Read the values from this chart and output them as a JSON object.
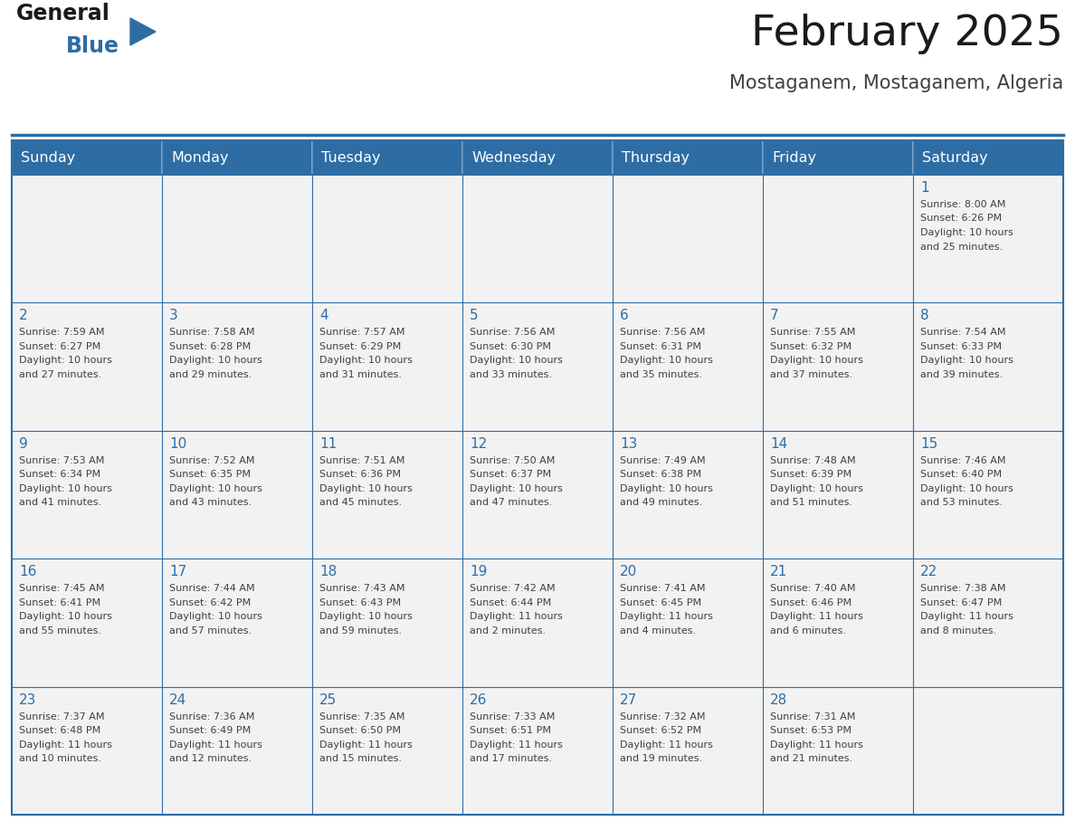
{
  "title": "February 2025",
  "subtitle": "Mostaganem, Mostaganem, Algeria",
  "header_bg_color": "#2E6DA4",
  "header_text_color": "#FFFFFF",
  "cell_bg_color": "#F2F2F2",
  "border_color": "#2E6DA4",
  "title_color": "#1a1a1a",
  "subtitle_color": "#404040",
  "day_number_color": "#2E6DA4",
  "cell_text_color": "#404040",
  "days_of_week": [
    "Sunday",
    "Monday",
    "Tuesday",
    "Wednesday",
    "Thursday",
    "Friday",
    "Saturday"
  ],
  "weeks": [
    [
      null,
      null,
      null,
      null,
      null,
      null,
      1
    ],
    [
      2,
      3,
      4,
      5,
      6,
      7,
      8
    ],
    [
      9,
      10,
      11,
      12,
      13,
      14,
      15
    ],
    [
      16,
      17,
      18,
      19,
      20,
      21,
      22
    ],
    [
      23,
      24,
      25,
      26,
      27,
      28,
      null
    ]
  ],
  "cell_data": {
    "1": {
      "sunrise": "8:00 AM",
      "sunset": "6:26 PM",
      "daylight_h": "10 hours",
      "daylight_m": "and 25 minutes."
    },
    "2": {
      "sunrise": "7:59 AM",
      "sunset": "6:27 PM",
      "daylight_h": "10 hours",
      "daylight_m": "and 27 minutes."
    },
    "3": {
      "sunrise": "7:58 AM",
      "sunset": "6:28 PM",
      "daylight_h": "10 hours",
      "daylight_m": "and 29 minutes."
    },
    "4": {
      "sunrise": "7:57 AM",
      "sunset": "6:29 PM",
      "daylight_h": "10 hours",
      "daylight_m": "and 31 minutes."
    },
    "5": {
      "sunrise": "7:56 AM",
      "sunset": "6:30 PM",
      "daylight_h": "10 hours",
      "daylight_m": "and 33 minutes."
    },
    "6": {
      "sunrise": "7:56 AM",
      "sunset": "6:31 PM",
      "daylight_h": "10 hours",
      "daylight_m": "and 35 minutes."
    },
    "7": {
      "sunrise": "7:55 AM",
      "sunset": "6:32 PM",
      "daylight_h": "10 hours",
      "daylight_m": "and 37 minutes."
    },
    "8": {
      "sunrise": "7:54 AM",
      "sunset": "6:33 PM",
      "daylight_h": "10 hours",
      "daylight_m": "and 39 minutes."
    },
    "9": {
      "sunrise": "7:53 AM",
      "sunset": "6:34 PM",
      "daylight_h": "10 hours",
      "daylight_m": "and 41 minutes."
    },
    "10": {
      "sunrise": "7:52 AM",
      "sunset": "6:35 PM",
      "daylight_h": "10 hours",
      "daylight_m": "and 43 minutes."
    },
    "11": {
      "sunrise": "7:51 AM",
      "sunset": "6:36 PM",
      "daylight_h": "10 hours",
      "daylight_m": "and 45 minutes."
    },
    "12": {
      "sunrise": "7:50 AM",
      "sunset": "6:37 PM",
      "daylight_h": "10 hours",
      "daylight_m": "and 47 minutes."
    },
    "13": {
      "sunrise": "7:49 AM",
      "sunset": "6:38 PM",
      "daylight_h": "10 hours",
      "daylight_m": "and 49 minutes."
    },
    "14": {
      "sunrise": "7:48 AM",
      "sunset": "6:39 PM",
      "daylight_h": "10 hours",
      "daylight_m": "and 51 minutes."
    },
    "15": {
      "sunrise": "7:46 AM",
      "sunset": "6:40 PM",
      "daylight_h": "10 hours",
      "daylight_m": "and 53 minutes."
    },
    "16": {
      "sunrise": "7:45 AM",
      "sunset": "6:41 PM",
      "daylight_h": "10 hours",
      "daylight_m": "and 55 minutes."
    },
    "17": {
      "sunrise": "7:44 AM",
      "sunset": "6:42 PM",
      "daylight_h": "10 hours",
      "daylight_m": "and 57 minutes."
    },
    "18": {
      "sunrise": "7:43 AM",
      "sunset": "6:43 PM",
      "daylight_h": "10 hours",
      "daylight_m": "and 59 minutes."
    },
    "19": {
      "sunrise": "7:42 AM",
      "sunset": "6:44 PM",
      "daylight_h": "11 hours",
      "daylight_m": "and 2 minutes."
    },
    "20": {
      "sunrise": "7:41 AM",
      "sunset": "6:45 PM",
      "daylight_h": "11 hours",
      "daylight_m": "and 4 minutes."
    },
    "21": {
      "sunrise": "7:40 AM",
      "sunset": "6:46 PM",
      "daylight_h": "11 hours",
      "daylight_m": "and 6 minutes."
    },
    "22": {
      "sunrise": "7:38 AM",
      "sunset": "6:47 PM",
      "daylight_h": "11 hours",
      "daylight_m": "and 8 minutes."
    },
    "23": {
      "sunrise": "7:37 AM",
      "sunset": "6:48 PM",
      "daylight_h": "11 hours",
      "daylight_m": "and 10 minutes."
    },
    "24": {
      "sunrise": "7:36 AM",
      "sunset": "6:49 PM",
      "daylight_h": "11 hours",
      "daylight_m": "and 12 minutes."
    },
    "25": {
      "sunrise": "7:35 AM",
      "sunset": "6:50 PM",
      "daylight_h": "11 hours",
      "daylight_m": "and 15 minutes."
    },
    "26": {
      "sunrise": "7:33 AM",
      "sunset": "6:51 PM",
      "daylight_h": "11 hours",
      "daylight_m": "and 17 minutes."
    },
    "27": {
      "sunrise": "7:32 AM",
      "sunset": "6:52 PM",
      "daylight_h": "11 hours",
      "daylight_m": "and 19 minutes."
    },
    "28": {
      "sunrise": "7:31 AM",
      "sunset": "6:53 PM",
      "daylight_h": "11 hours",
      "daylight_m": "and 21 minutes."
    }
  },
  "logo_text1": "General",
  "logo_text2": "Blue",
  "logo_color1": "#1a1a1a",
  "logo_color2": "#2E6DA4",
  "logo_triangle_color": "#2E6DA4",
  "fig_width": 11.88,
  "fig_height": 9.18,
  "dpi": 100
}
